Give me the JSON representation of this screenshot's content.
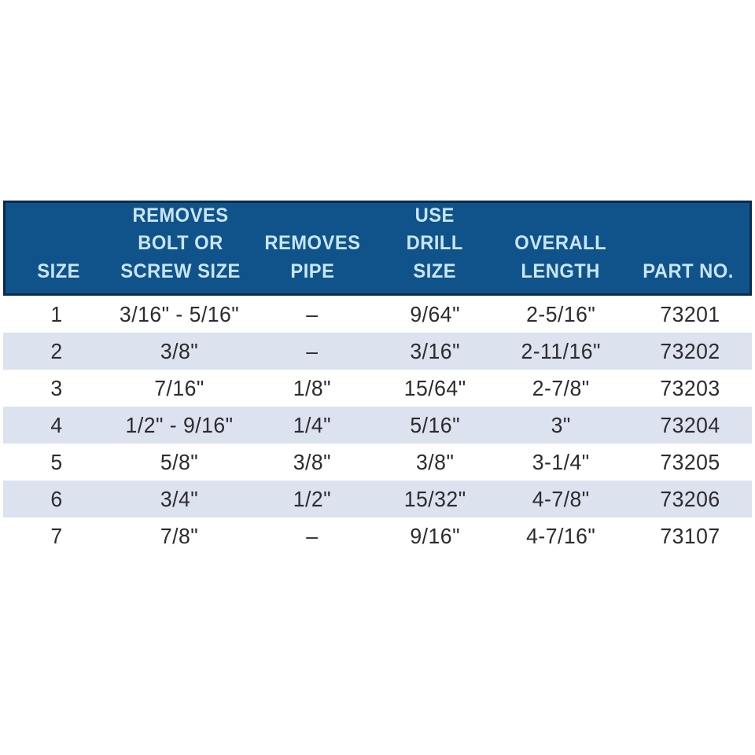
{
  "colors": {
    "header_bg": "#10538b",
    "header_border": "#0a2c4c",
    "header_text": "#c9e5f4",
    "stripe_bg": "#dce2ee",
    "body_text": "#2d2c2e",
    "page_bg": "#ffffff"
  },
  "table": {
    "columns": [
      {
        "label": "SIZE"
      },
      {
        "label": "REMOVES\nBOLT OR\nSCREW SIZE"
      },
      {
        "label": "REMOVES\nPIPE"
      },
      {
        "label": "USE\nDRILL\nSIZE"
      },
      {
        "label": "OVERALL\nLENGTH"
      },
      {
        "label": "PART NO."
      }
    ],
    "rows": [
      [
        "1",
        "3/16\" - 5/16\"",
        "–",
        "9/64\"",
        "2-5/16\"",
        "73201"
      ],
      [
        "2",
        "3/8\"",
        "–",
        "3/16\"",
        "2-11/16\"",
        "73202"
      ],
      [
        "3",
        "7/16\"",
        "1/8\"",
        "15/64\"",
        "2-7/8\"",
        "73203"
      ],
      [
        "4",
        "1/2\" - 9/16\"",
        "1/4\"",
        "5/16\"",
        "3\"",
        "73204"
      ],
      [
        "5",
        "5/8\"",
        "3/8\"",
        "3/8\"",
        "3-1/4\"",
        "73205"
      ],
      [
        "6",
        "3/4\"",
        "1/2\"",
        "15/32\"",
        "4-7/8\"",
        "73206"
      ],
      [
        "7",
        "7/8\"",
        "–",
        "9/16\"",
        "4-7/16\"",
        "73107"
      ]
    ]
  }
}
